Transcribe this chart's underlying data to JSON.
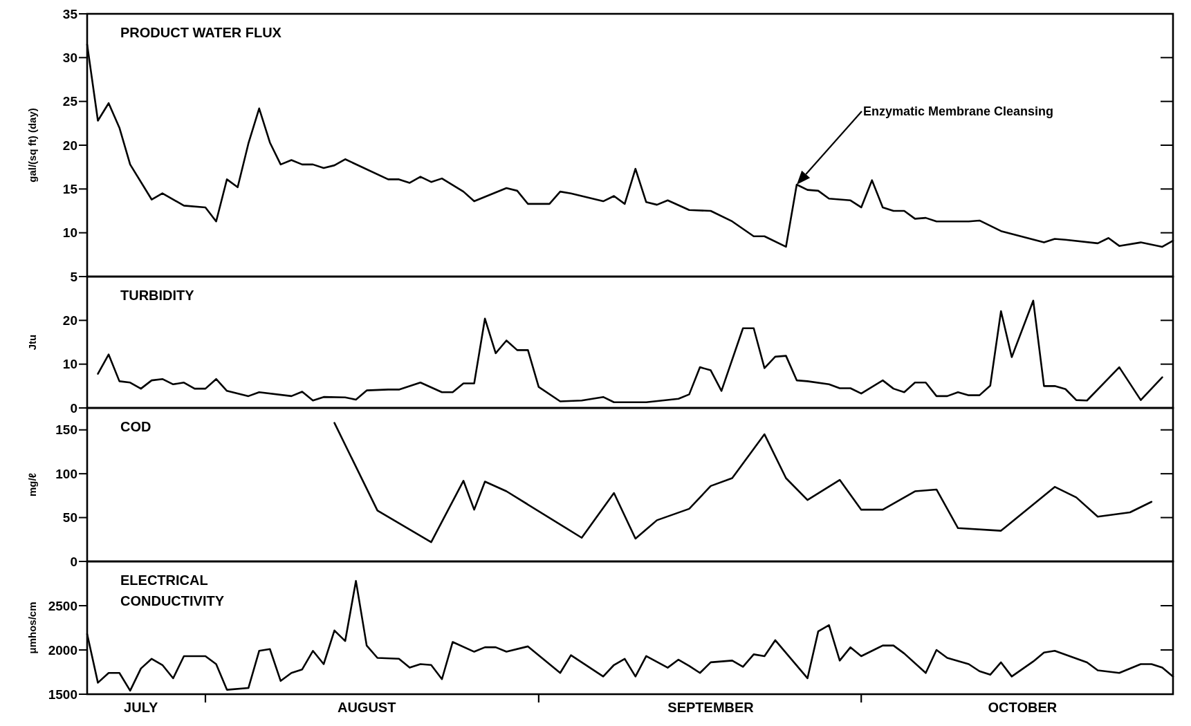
{
  "chart_data": [
    {
      "type": "line",
      "title": "PRODUCT WATER FLUX",
      "ylabel": "gal/(sq ft) (day)",
      "xlim": [
        "--07-21",
        "--10-30"
      ],
      "ylim": [
        5,
        35
      ],
      "yticks": [
        5,
        10,
        15,
        20,
        25,
        30,
        35
      ],
      "tick_labels": "y",
      "x": [
        "--07-21",
        "--07-22",
        "--07-23",
        "--07-24",
        "--07-25",
        "--07-27",
        "--07-28",
        "--07-30",
        "--08-01",
        "--08-02",
        "--08-03",
        "--08-04",
        "--08-05",
        "--08-06",
        "--08-07",
        "--08-08",
        "--08-09",
        "--08-10",
        "--08-11",
        "--08-12",
        "--08-13",
        "--08-14",
        "--08-18",
        "--08-19",
        "--08-20",
        "--08-21",
        "--08-22",
        "--08-23",
        "--08-25",
        "--08-26",
        "--08-29",
        "--08-30",
        "--08-31",
        "--09-02",
        "--09-03",
        "--09-04",
        "--09-07",
        "--09-08",
        "--09-09",
        "--09-10",
        "--09-11",
        "--09-12",
        "--09-13",
        "--09-15",
        "--09-17",
        "--09-19",
        "--09-21",
        "--09-22",
        "--09-24",
        "--09-25",
        "--09-26",
        "--09-27",
        "--09-28",
        "--09-29",
        "--09-30",
        "--10-01",
        "--10-02",
        "--10-03",
        "--10-04",
        "--10-05",
        "--10-06",
        "--10-07",
        "--10-08",
        "--10-11",
        "--10-12",
        "--10-14",
        "--10-18",
        "--10-19",
        "--10-20",
        "--10-23",
        "--10-24",
        "--10-25",
        "--10-27",
        "--10-29",
        "--10-30"
      ],
      "series": [
        {
          "color": "#000000",
          "values": [
            31.5,
            22.8,
            24.8,
            22,
            17.8,
            13.8,
            14.5,
            13.1,
            12.9,
            11.3,
            16.1,
            15.2,
            20.2,
            24.2,
            20.3,
            17.8,
            18.3,
            17.8,
            17.8,
            17.4,
            17.7,
            18.4,
            16.1,
            16.1,
            15.7,
            16.4,
            15.8,
            16.2,
            14.7,
            13.6,
            15.1,
            14.8,
            13.3,
            13.3,
            14.7,
            14.5,
            13.6,
            14.2,
            13.3,
            17.3,
            13.5,
            13.2,
            13.7,
            12.6,
            12.5,
            11.3,
            9.6,
            9.6,
            8.4,
            15.5,
            14.9,
            14.8,
            13.9,
            13.8,
            13.7,
            12.9,
            16,
            12.9,
            12.5,
            12.5,
            11.6,
            11.7,
            11.3,
            11.3,
            11.4,
            10.2,
            8.9,
            9.3,
            9.2,
            8.8,
            9.4,
            8.5,
            8.9,
            8.4,
            9.1
          ]
        }
      ],
      "annotations": [
        "Enzymatic Membrane Cleansing"
      ]
    },
    {
      "type": "line",
      "title": "TURBIDITY",
      "ylabel": "Jtu",
      "xlim": [
        "--07-21",
        "--10-30"
      ],
      "ylim": [
        0,
        30
      ],
      "yticks": [
        0,
        10,
        20
      ],
      "tick_labels": "y",
      "x": [
        "--07-22",
        "--07-23",
        "--07-24",
        "--07-25",
        "--07-26",
        "--07-27",
        "--07-28",
        "--07-29",
        "--07-30",
        "--07-31",
        "--08-01",
        "--08-02",
        "--08-03",
        "--08-05",
        "--08-06",
        "--08-09",
        "--08-10",
        "--08-11",
        "--08-12",
        "--08-14",
        "--08-15",
        "--08-16",
        "--08-18",
        "--08-19",
        "--08-21",
        "--08-23",
        "--08-24",
        "--08-25",
        "--08-26",
        "--08-27",
        "--08-28",
        "--08-29",
        "--08-30",
        "--08-31",
        "--09-01",
        "--09-03",
        "--09-05",
        "--09-07",
        "--09-08",
        "--09-11",
        "--09-14",
        "--09-15",
        "--09-16",
        "--09-17",
        "--09-18",
        "--09-20",
        "--09-21",
        "--09-22",
        "--09-23",
        "--09-24",
        "--09-25",
        "--09-26",
        "--09-28",
        "--09-29",
        "--09-30",
        "--10-01",
        "--10-03",
        "--10-04",
        "--10-05",
        "--10-06",
        "--10-07",
        "--10-08",
        "--10-09",
        "--10-10",
        "--10-11",
        "--10-12",
        "--10-13",
        "--10-14",
        "--10-15",
        "--10-17",
        "--10-18",
        "--10-19",
        "--10-20",
        "--10-21",
        "--10-22",
        "--10-25",
        "--10-27",
        "--10-29"
      ],
      "series": [
        {
          "color": "#000000",
          "values": [
            7.8,
            12.2,
            6.1,
            5.8,
            4.4,
            6.3,
            6.6,
            5.4,
            5.8,
            4.4,
            4.4,
            6.6,
            3.9,
            2.7,
            3.6,
            2.7,
            3.7,
            1.7,
            2.5,
            2.4,
            1.9,
            4,
            4.2,
            4.2,
            5.8,
            3.6,
            3.6,
            5.6,
            5.6,
            20.4,
            12.5,
            15.4,
            13.2,
            13.2,
            4.8,
            1.5,
            1.7,
            2.5,
            1.3,
            1.3,
            2.1,
            3.1,
            9.3,
            8.6,
            3.9,
            18.2,
            18.2,
            9.1,
            11.7,
            11.9,
            6.3,
            6.1,
            5.4,
            4.5,
            4.5,
            3.3,
            6.3,
            4.4,
            3.6,
            5.8,
            5.8,
            2.7,
            2.7,
            3.6,
            2.9,
            2.9,
            5.1,
            22.1,
            11.6,
            24.5,
            5,
            5,
            4.3,
            1.8,
            1.7,
            9.3,
            1.8,
            7
          ]
        }
      ]
    },
    {
      "type": "line",
      "title": "COD",
      "ylabel": "mg/ℓ",
      "xlim": [
        "--07-21",
        "--10-30"
      ],
      "ylim": [
        0,
        175
      ],
      "yticks": [
        0,
        50,
        100,
        150
      ],
      "tick_labels": "y",
      "x": [
        "--08-13",
        "--08-17",
        "--08-22",
        "--08-25",
        "--08-26",
        "--08-27",
        "--08-29",
        "--09-05",
        "--09-08",
        "--09-10",
        "--09-12",
        "--09-15",
        "--09-17",
        "--09-19",
        "--09-22",
        "--09-24",
        "--09-26",
        "--09-29",
        "--10-01",
        "--10-03",
        "--10-06",
        "--10-08",
        "--10-10",
        "--10-14",
        "--10-19",
        "--10-21",
        "--10-23",
        "--10-26",
        "--10-28"
      ],
      "series": [
        {
          "color": "#000000",
          "values": [
            158,
            58,
            22,
            92,
            59,
            91,
            80,
            27,
            78,
            26,
            47,
            60,
            86,
            95,
            145,
            95,
            70,
            93,
            59,
            59,
            80,
            82,
            38,
            35,
            85,
            73,
            51,
            56,
            68
          ]
        }
      ]
    },
    {
      "type": "line",
      "title": "ELECTRICAL\nCONDUCTIVITY",
      "ylabel": "μmhos/cm",
      "xlim": [
        "--07-21",
        "--10-30"
      ],
      "xticks": [
        {
          "value": "--07-26",
          "label": "JULY"
        },
        {
          "value": "--08-01",
          "label": null
        },
        {
          "value": "--08-16",
          "label": "AUGUST"
        },
        {
          "value": "--09-01",
          "label": null
        },
        {
          "value": "--09-17",
          "label": "SEPTEMBER"
        },
        {
          "value": "--10-01",
          "label": null
        },
        {
          "value": "--10-16",
          "label": "OCTOBER"
        }
      ],
      "ylim": [
        1500,
        3000
      ],
      "yticks": [
        1500,
        2000,
        2500
      ],
      "x": [
        "--07-21",
        "--07-22",
        "--07-23",
        "--07-24",
        "--07-25",
        "--07-26",
        "--07-27",
        "--07-28",
        "--07-29",
        "--07-30",
        "--08-01",
        "--08-02",
        "--08-03",
        "--08-05",
        "--08-06",
        "--08-07",
        "--08-08",
        "--08-09",
        "--08-10",
        "--08-11",
        "--08-12",
        "--08-13",
        "--08-14",
        "--08-15",
        "--08-16",
        "--08-17",
        "--08-19",
        "--08-20",
        "--08-21",
        "--08-22",
        "--08-23",
        "--08-24",
        "--08-26",
        "--08-27",
        "--08-28",
        "--08-29",
        "--08-31",
        "--09-03",
        "--09-04",
        "--09-07",
        "--09-08",
        "--09-09",
        "--09-10",
        "--09-11",
        "--09-13",
        "--09-14",
        "--09-15",
        "--09-16",
        "--09-17",
        "--09-19",
        "--09-20",
        "--09-21",
        "--09-22",
        "--09-23",
        "--09-26",
        "--09-27",
        "--09-28",
        "--09-29",
        "--09-30",
        "--10-01",
        "--10-03",
        "--10-04",
        "--10-05",
        "--10-07",
        "--10-08",
        "--10-09",
        "--10-11",
        "--10-12",
        "--10-13",
        "--10-14",
        "--10-15",
        "--10-17",
        "--10-18",
        "--10-19",
        "--10-22",
        "--10-23",
        "--10-25",
        "--10-27",
        "--10-28",
        "--10-29",
        "--10-30"
      ],
      "series": [
        {
          "color": "#000000",
          "values": [
            2180,
            1630,
            1740,
            1740,
            1540,
            1790,
            1900,
            1830,
            1680,
            1930,
            1930,
            1840,
            1550,
            1570,
            1990,
            2010,
            1650,
            1740,
            1780,
            1990,
            1840,
            2220,
            2100,
            2780,
            2050,
            1910,
            1900,
            1800,
            1840,
            1830,
            1670,
            2090,
            1980,
            2030,
            2030,
            1980,
            2040,
            1740,
            1940,
            1700,
            1830,
            1900,
            1700,
            1930,
            1800,
            1890,
            1820,
            1740,
            1860,
            1880,
            1810,
            1950,
            1930,
            2110,
            1680,
            2210,
            2280,
            1880,
            2030,
            1930,
            2050,
            2050,
            1960,
            1740,
            2000,
            1910,
            1840,
            1760,
            1720,
            1860,
            1700,
            1870,
            1970,
            1990,
            1860,
            1770,
            1740,
            1840,
            1840,
            1800,
            1700
          ]
        }
      ]
    }
  ]
}
